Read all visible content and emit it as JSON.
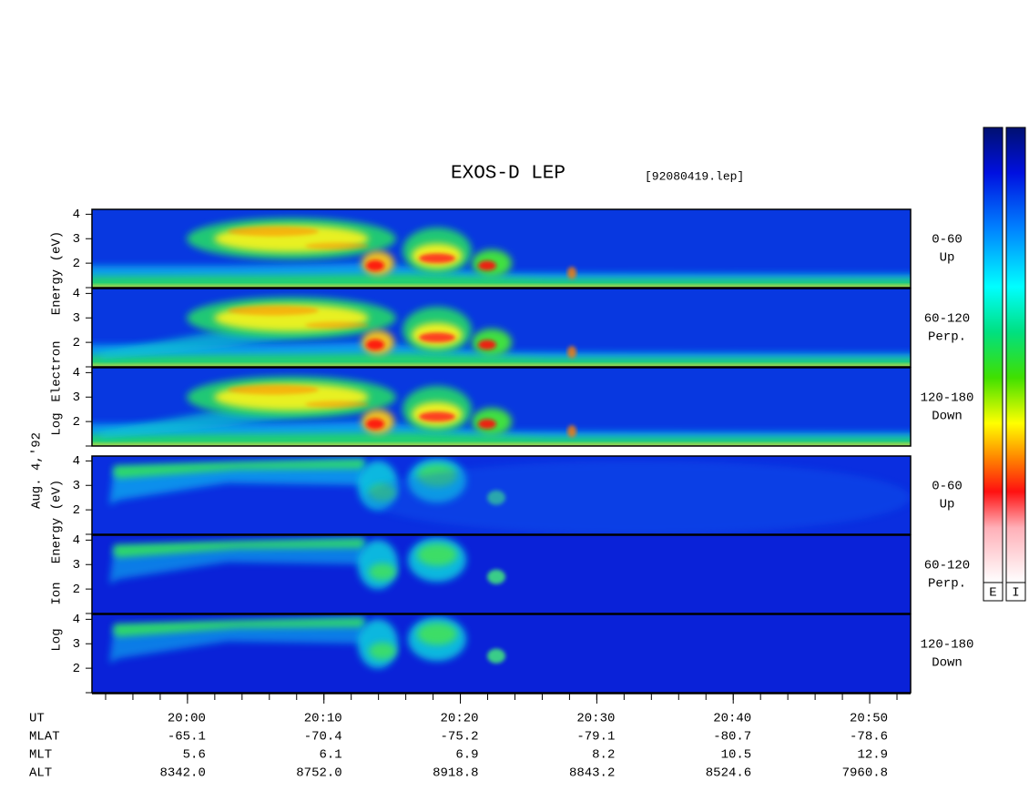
{
  "title": "EXOS-D LEP",
  "file": "[92080419.lep]",
  "date": "Aug. 4,'92",
  "electron_axis_label": [
    "Log",
    "Electron",
    "Energy (eV)"
  ],
  "ion_axis_label": [
    "Log",
    "Ion",
    "Energy (eV)"
  ],
  "panels": [
    {
      "species": "electron",
      "pitch_angle": "0-60",
      "direction": "Up",
      "ylim": [
        1,
        4.2
      ],
      "yticks": [
        2,
        3,
        4
      ]
    },
    {
      "species": "electron",
      "pitch_angle": "60-120",
      "direction": "Perp.",
      "ylim": [
        1,
        4.2
      ],
      "yticks": [
        2,
        3,
        4
      ]
    },
    {
      "species": "electron",
      "pitch_angle": "120-180",
      "direction": "Down",
      "ylim": [
        1,
        4.2
      ],
      "yticks": [
        2,
        3,
        4
      ]
    },
    {
      "species": "ion",
      "pitch_angle": "0-60",
      "direction": "Up",
      "ylim": [
        1,
        4.2
      ],
      "yticks": [
        2,
        3,
        4
      ]
    },
    {
      "species": "ion",
      "pitch_angle": "60-120",
      "direction": "Perp.",
      "ylim": [
        1,
        4.2
      ],
      "yticks": [
        2,
        3,
        4
      ]
    },
    {
      "species": "ion",
      "pitch_angle": "120-180",
      "direction": "Down",
      "ylim": [
        1,
        4.2
      ],
      "yticks": [
        2,
        3,
        4
      ]
    }
  ],
  "time_axis": {
    "label": "UT",
    "xlim": [
      "19:53",
      "20:53"
    ],
    "xticks": [
      "20:00",
      "20:10",
      "20:20",
      "20:30",
      "20:40",
      "20:50"
    ]
  },
  "ephemeris": [
    {
      "label": "MLAT",
      "values": [
        "-65.1",
        "-70.4",
        "-75.2",
        "-79.1",
        "-80.7",
        "-78.6"
      ]
    },
    {
      "label": "MLT",
      "values": [
        "5.6",
        "6.1",
        "6.9",
        "8.2",
        "10.5",
        "12.9"
      ]
    },
    {
      "label": "ALT",
      "values": [
        "8342.0",
        "8752.0",
        "8918.8",
        "8843.2",
        "8524.6",
        "7960.8"
      ]
    }
  ],
  "colorbars": [
    "E",
    "I"
  ]
}
